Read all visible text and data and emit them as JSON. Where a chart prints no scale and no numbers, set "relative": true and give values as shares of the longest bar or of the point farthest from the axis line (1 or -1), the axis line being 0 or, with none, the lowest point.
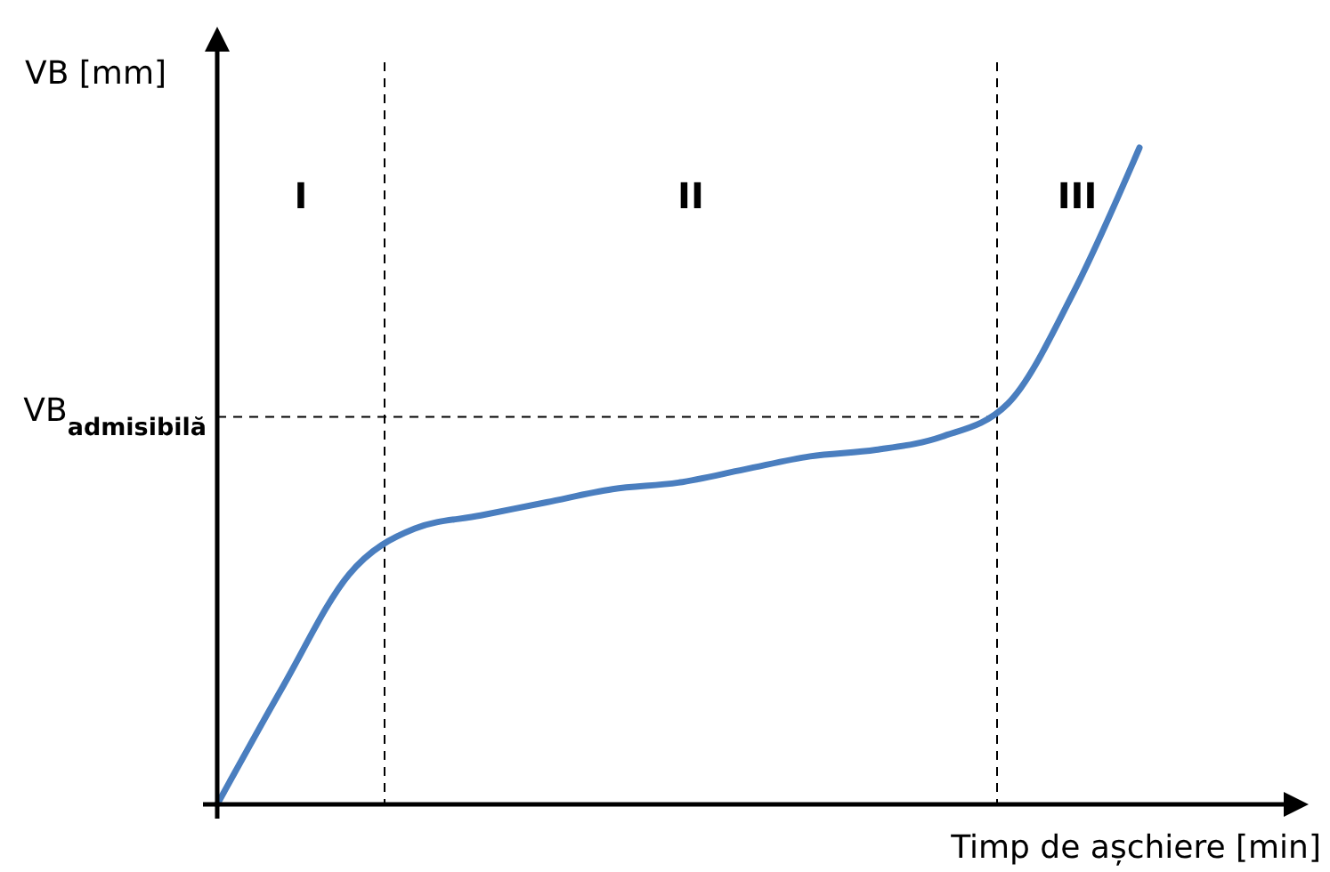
{
  "chart_data": {
    "type": "line",
    "relative": true,
    "xlabel": "Timp de așchiere [min]",
    "ylabel": "VB [mm]",
    "categories": [
      null,
      null,
      null,
      null,
      null,
      null,
      null,
      null,
      null,
      null,
      null,
      null,
      null,
      null,
      null
    ],
    "series": [
      {
        "color": "#4a7ebf",
        "values": [
          0,
          0.18,
          0.35,
          0.42,
          0.44,
          0.46,
          0.48,
          0.49,
          0.51,
          0.53,
          0.54,
          0.56,
          0.61,
          0.78,
          1
        ]
      }
    ],
    "ref_lines": [
      {
        "axis": "y",
        "value": 0.59,
        "label": "VB$_{admisibilă}$",
        "color": "#000000",
        "line_style": "dashed"
      }
    ],
    "annotations": [
      "I",
      "II",
      "III"
    ],
    "marker": "none",
    "line_style": "solid"
  }
}
